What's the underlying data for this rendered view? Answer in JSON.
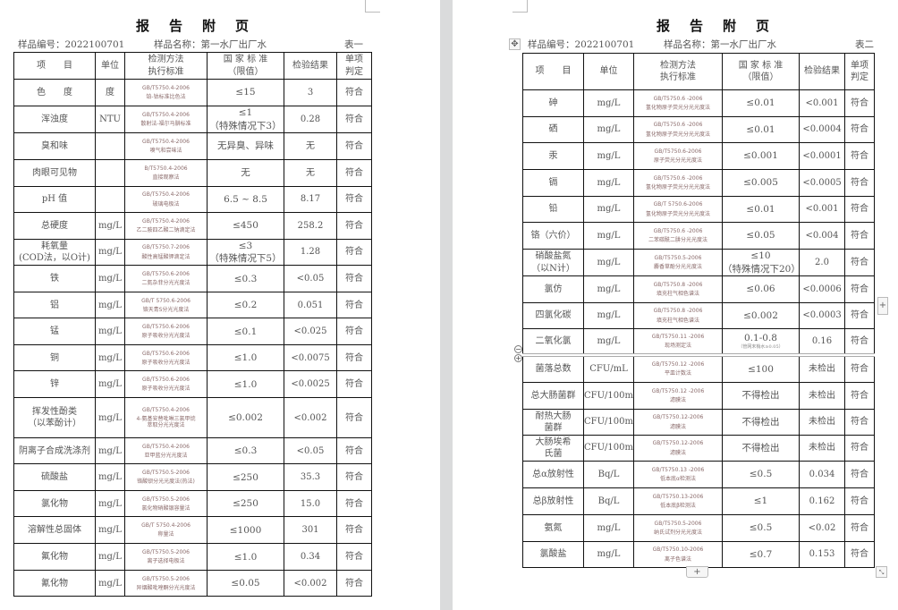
{
  "pages": [
    {
      "title": "报告附页",
      "sample_no": "样品编号：2022100701",
      "sample_name": "样品名称：第一水厂出厂水",
      "table_label": "表一",
      "headers": [
        "项　　目",
        "单位",
        "检测方法\n执行标准",
        "国 家 标 准\n（限值）",
        "检验结果",
        "单项\n判定"
      ],
      "rows": [
        [
          "色　　度",
          "度",
          "GB/T5750.4-2006",
          "铂-钴标准比色法",
          "≤15",
          "3",
          "符合"
        ],
        [
          "浑浊度",
          "NTU",
          "GB/T5750.4-2006",
          "散射法-福尔马肼标准",
          "≤1\n（特殊情况下3）",
          "0.28",
          "符合"
        ],
        [
          "臭和味",
          "",
          "GB/T5750.4-2006",
          "嗅气和尝味法",
          "无异臭、异味",
          "无",
          "符合"
        ],
        [
          "肉眼可见物",
          "",
          "B/T5750.4-2006",
          "直接观察法",
          "无",
          "无",
          "符合"
        ],
        [
          "pH 值",
          "",
          "GB/T5750.4-2006",
          "玻璃电极法",
          "6.5 ~ 8.5",
          "8.17",
          "符合"
        ],
        [
          "总硬度",
          "mg/L",
          "GB/T5750.4-2006",
          "乙二胺四乙酸二钠滴定法",
          "≤450",
          "258.2",
          "符合"
        ],
        [
          "耗氧量\n(COD法，以O计)",
          "mg/L",
          "GB/T5750.7-2006",
          "酸性高锰酸钾滴定法",
          "≤3\n（特殊情况下5）",
          "1.28",
          "符合"
        ],
        [
          "铁",
          "mg/L",
          "GB/T5750.6-2006",
          "二氮杂菲分光光度法",
          "≤0.3",
          "<0.05",
          "符合"
        ],
        [
          "铝",
          "mg/L",
          "GB/T 5750.6-2006",
          "铬天青S分光光度法",
          "≤0.2",
          "0.051",
          "符合"
        ],
        [
          "锰",
          "mg/L",
          "GB/T5750.6-2006",
          "原子吸收分光光度法",
          "≤0.1",
          "<0.025",
          "符合"
        ],
        [
          "铜",
          "mg/L",
          "GB/T5750.6-2006",
          "原子吸收分光光度法",
          "≤1.0",
          "<0.0075",
          "符合"
        ],
        [
          "锌",
          "mg/L",
          "GB/T5750.6-2006",
          "原子吸收分光光度法",
          "≤1.0",
          "<0.0025",
          "符合"
        ],
        [
          "挥发性酚类\n（以苯酚计）",
          "mg/L",
          "GB/T5750.4-2006",
          "4-氨基安替吡啉三氯甲烷\n萃取分光光度法",
          "≤0.002",
          "<0.002",
          "符合"
        ],
        [
          "阴离子合成洗涤剂",
          "mg/L",
          "GB/T5750.4-2006",
          "亚甲蓝分光光度法",
          "≤0.3",
          "<0.05",
          "符合"
        ],
        [
          "硫酸盐",
          "mg/L",
          "GB/T5750.5-2006",
          "铬酸钡分光光度法(热法)",
          "≤250",
          "35.3",
          "符合"
        ],
        [
          "氯化物",
          "mg/L",
          "GB/T5750.5-2006",
          "氯化物硝酸银容量法",
          "≤250",
          "15.0",
          "符合"
        ],
        [
          "溶解性总固体",
          "mg/L",
          "GB/T 5750.4-2006",
          "称量法",
          "≤1000",
          "301",
          "符合"
        ],
        [
          "氟化物",
          "mg/L",
          "GB/T5750.5-2006",
          "离子选择电极法",
          "≤1.0",
          "0.34",
          "符合"
        ],
        [
          "氰化物",
          "mg/L",
          "GB/T5750.5-2006",
          "异烟酸吡唑酮分光光度法",
          "≤0.05",
          "<0.002",
          "符合"
        ]
      ]
    },
    {
      "title": "报告附页",
      "sample_no": "样品编号：2022100701",
      "sample_name": "样品名称：第一水厂出厂水",
      "table_label": "表二",
      "headers": [
        "项　　目",
        "单位",
        "检测方法\n执行标准",
        "国 家 标 准\n（限值）",
        "检验结果",
        "单项\n判定"
      ],
      "rows": [
        [
          "砷",
          "mg/L",
          "GB/T5750.6 -2006",
          "氢化物原子荧光分光光度法",
          "≤0.01",
          "<0.001",
          "符合"
        ],
        [
          "硒",
          "mg/L",
          "GB/T5750.6 -2006",
          "氢化物原子荧光分光光度法",
          "≤0.01",
          "<0.0004",
          "符合"
        ],
        [
          "汞",
          "mg/L",
          "GB/T5750.6-2006",
          "原子荧光分光光度法",
          "≤0.001",
          "<0.0001",
          "符合"
        ],
        [
          "镉",
          "mg/L",
          "GB/T5750.6 -2006",
          "氢化物原子荧光分光光度法",
          "≤0.005",
          "<0.0005",
          "符合"
        ],
        [
          "铅",
          "mg/L",
          "GB/T 5750.6-2006",
          "氢化物原子荧光分光光度法",
          "≤0.01",
          "<0.001",
          "符合"
        ],
        [
          "铬（六价）",
          "mg/L",
          "GB/T5750.6 -2006",
          "二苯碳酰二肼分光光度法",
          "≤0.05",
          "<0.004",
          "符合"
        ],
        [
          "硝酸盐氮\n（以N计）",
          "mg/L",
          "GB/T5750.5-2006",
          "麝香草酚分光光度法",
          "≤10\n（特殊情况下20）",
          "2.0",
          "符合"
        ],
        [
          "氯仿",
          "mg/L",
          "GB/T5750.8 -2006",
          "填充柱气相色谱法",
          "≤0.06",
          "<0.0006",
          "符合"
        ],
        [
          "四氯化碳",
          "mg/L",
          "GB/T5750.8 -2006",
          "填充柱气相色谱法",
          "≤0.002",
          "<0.0003",
          "符合"
        ],
        [
          "二氧化氯",
          "mg/L",
          "GB/T5750.11 -2006",
          "现场测定法",
          "0.1-0.8",
          "0.16",
          "符合"
        ],
        [
          "菌落总数",
          "CFU/mL",
          "GB/T5750.12 -2006",
          "平皿计数法",
          "≤100",
          "未检出",
          "符合"
        ],
        [
          "总大肠菌群",
          "CFU/100mL",
          "GB/T5750.12 -2006",
          "滤膜法",
          "不得检出",
          "未检出",
          "符合"
        ],
        [
          "耐热大肠\n菌群",
          "CFU/100mL",
          "GB/T5750.12-2006",
          "滤膜法",
          "不得检出",
          "未检出",
          "符合"
        ],
        [
          "大肠埃希\n氏菌",
          "CFU/100mL",
          "GB/T5750.12-2006",
          "滤膜法",
          "不得检出",
          "未检出",
          "符合"
        ],
        [
          "总α放射性",
          "Bq/L",
          "GB/T5750.13 -2006",
          "低本底α检测法",
          "≤0.5",
          "0.034",
          "符合"
        ],
        [
          "总β放射性",
          "Bq/L",
          "GB/T5750.13-2006",
          "低本底β检测法",
          "≤1",
          "0.162",
          "符合"
        ],
        [
          "氨氮",
          "mg/L",
          "GB/T5750.5-2006",
          "纳氏试剂分光光度法",
          "≤0.5",
          "<0.02",
          "符合"
        ],
        [
          "氯酸盐",
          "mg/L",
          "GB/T5750.10-2006",
          "离子色谱法",
          "≤0.7",
          "0.153",
          "符合"
        ]
      ],
      "chlorine_dioxide_note": "（管网末梢水≥0.05）"
    }
  ],
  "ui": {
    "add_row": "+",
    "add_column": "+",
    "collapse": "−",
    "expand": "+"
  }
}
